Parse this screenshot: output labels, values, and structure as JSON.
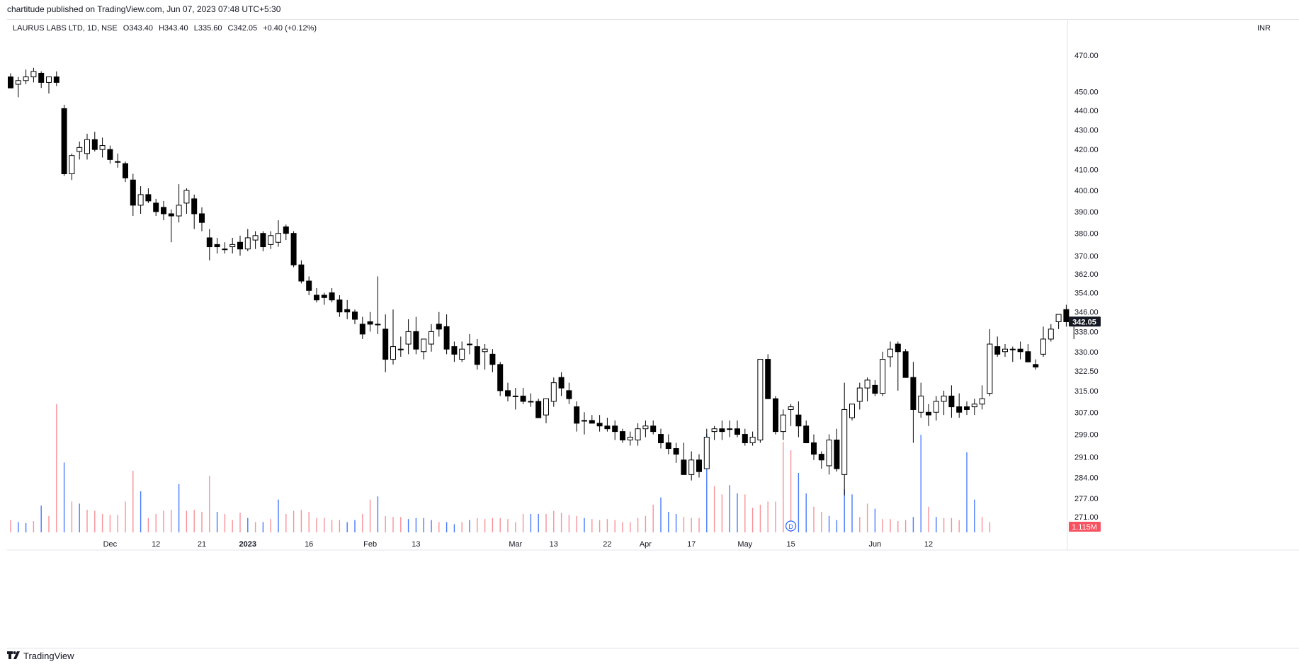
{
  "header": {
    "published": "chartitude published on TradingView.com, Jun 07, 2023 07:48 UTC+5:30"
  },
  "legend": {
    "symbol": "LAURUS LABS LTD, 1D, NSE",
    "open": "O343.40",
    "high": "H343.40",
    "low": "L335.60",
    "close": "C342.05",
    "change": "+0.40 (+0.12%)"
  },
  "currency": "INR",
  "footer": {
    "brand": "TradingView"
  },
  "colors": {
    "up_fill": "#ffffff",
    "candle": "#000000",
    "vol_up": "#2962ff",
    "vol_down": "#f23645"
  },
  "chart_data": {
    "type": "candlestick",
    "y_ticks": [
      470,
      450,
      440,
      430,
      420,
      410,
      400,
      390,
      380,
      370,
      362,
      354,
      346,
      338,
      330,
      322.5,
      315,
      307,
      299,
      291,
      284,
      277,
      271
    ],
    "y_tick_labels": [
      "470.00",
      "450.00",
      "440.00",
      "430.00",
      "420.00",
      "410.00",
      "400.00",
      "390.00",
      "380.00",
      "370.00",
      "362.00",
      "354.00",
      "346.00",
      "338.00",
      "330.00",
      "322.50",
      "315.00",
      "307.00",
      "299.00",
      "291.00",
      "284.00",
      "277.00",
      "271.00"
    ],
    "scale": "log",
    "x_labels": [
      "Dec",
      "12",
      "21",
      "2023",
      "16",
      "Feb",
      "13",
      "Mar",
      "13",
      "22",
      "Apr",
      "17",
      "May",
      "15",
      "Jun",
      "12"
    ],
    "x_label_index": [
      13,
      19,
      25,
      31,
      39,
      47,
      53,
      66,
      71,
      78,
      83,
      89,
      96,
      102,
      113,
      120
    ],
    "last_price_label": "342.05",
    "volume_label": "1.115M",
    "dividend_marker": "D",
    "dividend_index": 102,
    "candles": [
      [
        458,
        460,
        452,
        452
      ],
      [
        454,
        458,
        447,
        456
      ],
      [
        456,
        462,
        454,
        458
      ],
      [
        458,
        463,
        455,
        461
      ],
      [
        460,
        461,
        452,
        455
      ],
      [
        455,
        457,
        449,
        458
      ],
      [
        458,
        461,
        453,
        455
      ],
      [
        441,
        443,
        407,
        408
      ],
      [
        408,
        418,
        405,
        417
      ],
      [
        419,
        424,
        415,
        421
      ],
      [
        418,
        428,
        415,
        425
      ],
      [
        425,
        429,
        419,
        420
      ],
      [
        420,
        426,
        416,
        422
      ],
      [
        420,
        422,
        413,
        415
      ],
      [
        414,
        418,
        411,
        414
      ],
      [
        413,
        414,
        404,
        406
      ],
      [
        405,
        408,
        388,
        393
      ],
      [
        393,
        402,
        389,
        398
      ],
      [
        398,
        401,
        394,
        395
      ],
      [
        394,
        396,
        388,
        390
      ],
      [
        392,
        395,
        386,
        389
      ],
      [
        389,
        391,
        376,
        388
      ],
      [
        388,
        403,
        385,
        393
      ],
      [
        394,
        401,
        389,
        400
      ],
      [
        396,
        398,
        382,
        389
      ],
      [
        389,
        392,
        381,
        385
      ],
      [
        378,
        382,
        368,
        374
      ],
      [
        375,
        378,
        371,
        374
      ],
      [
        373,
        376,
        371,
        373
      ],
      [
        374,
        378,
        371,
        375
      ],
      [
        376,
        379,
        370,
        373
      ],
      [
        373,
        382,
        372,
        378
      ],
      [
        377,
        381,
        373,
        379
      ],
      [
        380,
        381,
        372,
        374
      ],
      [
        375,
        381,
        373,
        379
      ],
      [
        376,
        386,
        374,
        380
      ],
      [
        383,
        384,
        377,
        380
      ],
      [
        380,
        381,
        365,
        366
      ],
      [
        366,
        368,
        358,
        359
      ],
      [
        359,
        361,
        353,
        355
      ],
      [
        353,
        356,
        350,
        351
      ],
      [
        353,
        354,
        349,
        352
      ],
      [
        354,
        356,
        350,
        351
      ],
      [
        351,
        353,
        344,
        346
      ],
      [
        347,
        351,
        343,
        346
      ],
      [
        346,
        347,
        341,
        343
      ],
      [
        341,
        344,
        335,
        337
      ],
      [
        342,
        346,
        338,
        341
      ],
      [
        341,
        361,
        337,
        341
      ],
      [
        339,
        345,
        322,
        327
      ],
      [
        327,
        347,
        325,
        332
      ],
      [
        331,
        336,
        328,
        331
      ],
      [
        333,
        343,
        329,
        338
      ],
      [
        338,
        344,
        329,
        331
      ],
      [
        330,
        334,
        327,
        335
      ],
      [
        333,
        341,
        330,
        338
      ],
      [
        341,
        346,
        336,
        339
      ],
      [
        340,
        345,
        329,
        331
      ],
      [
        332,
        334,
        326,
        329
      ],
      [
        327,
        334,
        326,
        331
      ],
      [
        333,
        337,
        329,
        333
      ],
      [
        332,
        335,
        323,
        325
      ],
      [
        330,
        333,
        323,
        331
      ],
      [
        329,
        331,
        322,
        325
      ],
      [
        325,
        326,
        313,
        315
      ],
      [
        315,
        318,
        311,
        313
      ],
      [
        313,
        316,
        308,
        313
      ],
      [
        313,
        316,
        310,
        311
      ],
      [
        311,
        314,
        309,
        311
      ],
      [
        311,
        312,
        305,
        305
      ],
      [
        306,
        312,
        303,
        312
      ],
      [
        311,
        320,
        309,
        318
      ],
      [
        320,
        322,
        313,
        316
      ],
      [
        315,
        318,
        310,
        312
      ],
      [
        309,
        311,
        300,
        303
      ],
      [
        304,
        307,
        299,
        304
      ],
      [
        304,
        306,
        303,
        303
      ],
      [
        303,
        306,
        300,
        302
      ],
      [
        302,
        305,
        300,
        301
      ],
      [
        302,
        304,
        297,
        300
      ],
      [
        300,
        301,
        296,
        297
      ],
      [
        297,
        300,
        295,
        298
      ],
      [
        297,
        303,
        295,
        301
      ],
      [
        301,
        304,
        298,
        302
      ],
      [
        302,
        304,
        299,
        300
      ],
      [
        299,
        301,
        294,
        296
      ],
      [
        296,
        299,
        292,
        294
      ],
      [
        294,
        296,
        289,
        292
      ],
      [
        290,
        296,
        285,
        285
      ],
      [
        285,
        293,
        283,
        290
      ],
      [
        290,
        292,
        284,
        286
      ],
      [
        287,
        301,
        287,
        298
      ],
      [
        300,
        302,
        297,
        301
      ],
      [
        301,
        304,
        297,
        300
      ],
      [
        301,
        304,
        298,
        301
      ],
      [
        301,
        304,
        298,
        299
      ],
      [
        299,
        301,
        295,
        296
      ],
      [
        296,
        300,
        295,
        298
      ],
      [
        297,
        326,
        296,
        327
      ],
      [
        327,
        329,
        312,
        312
      ],
      [
        312,
        313,
        299,
        300
      ],
      [
        300,
        308,
        297,
        306
      ],
      [
        308,
        310,
        302,
        309
      ],
      [
        306,
        311,
        298,
        302
      ],
      [
        302,
        304,
        296,
        296
      ],
      [
        296,
        299,
        290,
        292
      ],
      [
        292,
        293,
        287,
        290
      ],
      [
        288,
        299,
        285,
        297
      ],
      [
        297,
        301,
        286,
        287
      ],
      [
        285,
        318,
        278,
        308
      ],
      [
        305,
        310,
        304,
        310
      ],
      [
        311,
        318,
        308,
        316
      ],
      [
        316,
        320,
        311,
        319
      ],
      [
        317,
        319,
        313,
        314
      ],
      [
        314,
        330,
        313,
        327
      ],
      [
        328,
        334,
        324,
        331
      ],
      [
        333,
        334,
        315,
        330
      ],
      [
        330,
        331,
        320,
        320
      ],
      [
        320,
        326,
        296,
        308
      ],
      [
        307,
        318,
        305,
        313
      ],
      [
        307,
        310,
        302,
        306
      ],
      [
        307,
        313,
        304,
        311
      ],
      [
        311,
        315,
        306,
        313
      ],
      [
        313,
        317,
        305,
        309
      ],
      [
        309,
        314,
        305,
        307
      ],
      [
        309,
        311,
        306,
        308
      ],
      [
        309,
        312,
        306,
        310
      ],
      [
        310,
        317,
        308,
        312
      ],
      [
        314,
        339,
        313,
        333
      ],
      [
        332,
        336,
        328,
        329
      ],
      [
        330,
        333,
        328,
        331
      ],
      [
        331,
        332,
        326,
        331
      ],
      [
        331,
        334,
        327,
        330
      ],
      [
        330,
        333,
        326,
        326
      ],
      [
        325,
        327,
        323,
        324
      ],
      [
        329,
        340,
        328,
        335
      ],
      [
        335,
        341,
        334,
        339
      ],
      [
        342,
        344,
        339,
        345
      ],
      [
        347,
        349,
        340,
        342
      ],
      [
        343,
        343,
        335,
        342
      ]
    ],
    "volumes": [
      [
        0.12,
        0
      ],
      [
        0.1,
        1
      ],
      [
        0.09,
        1
      ],
      [
        0.11,
        0
      ],
      [
        0.26,
        1
      ],
      [
        0.16,
        0
      ],
      [
        1.25,
        0
      ],
      [
        0.68,
        1
      ],
      [
        0.3,
        0
      ],
      [
        0.28,
        1
      ],
      [
        0.22,
        0
      ],
      [
        0.21,
        0
      ],
      [
        0.18,
        0
      ],
      [
        0.17,
        0
      ],
      [
        0.17,
        0
      ],
      [
        0.3,
        0
      ],
      [
        0.6,
        0
      ],
      [
        0.4,
        1
      ],
      [
        0.14,
        0
      ],
      [
        0.18,
        0
      ],
      [
        0.21,
        0
      ],
      [
        0.22,
        0
      ],
      [
        0.47,
        1
      ],
      [
        0.21,
        0
      ],
      [
        0.22,
        0
      ],
      [
        0.2,
        0
      ],
      [
        0.55,
        0
      ],
      [
        0.2,
        1
      ],
      [
        0.18,
        0
      ],
      [
        0.12,
        0
      ],
      [
        0.19,
        0
      ],
      [
        0.14,
        1
      ],
      [
        0.1,
        0
      ],
      [
        0.1,
        1
      ],
      [
        0.13,
        0
      ],
      [
        0.32,
        1
      ],
      [
        0.18,
        0
      ],
      [
        0.21,
        0
      ],
      [
        0.22,
        0
      ],
      [
        0.2,
        0
      ],
      [
        0.14,
        0
      ],
      [
        0.14,
        0
      ],
      [
        0.12,
        0
      ],
      [
        0.12,
        0
      ],
      [
        0.1,
        1
      ],
      [
        0.12,
        1
      ],
      [
        0.18,
        0
      ],
      [
        0.32,
        0
      ],
      [
        0.35,
        1
      ],
      [
        0.16,
        0
      ],
      [
        0.15,
        0
      ],
      [
        0.15,
        0
      ],
      [
        0.13,
        1
      ],
      [
        0.14,
        1
      ],
      [
        0.14,
        1
      ],
      [
        0.12,
        1
      ],
      [
        0.1,
        0
      ],
      [
        0.1,
        1
      ],
      [
        0.08,
        1
      ],
      [
        0.1,
        0
      ],
      [
        0.12,
        1
      ],
      [
        0.14,
        0
      ],
      [
        0.13,
        0
      ],
      [
        0.14,
        0
      ],
      [
        0.14,
        0
      ],
      [
        0.13,
        0
      ],
      [
        0.1,
        0
      ],
      [
        0.18,
        0
      ],
      [
        0.18,
        1
      ],
      [
        0.18,
        1
      ],
      [
        0.18,
        0
      ],
      [
        0.21,
        0
      ],
      [
        0.19,
        0
      ],
      [
        0.17,
        0
      ],
      [
        0.16,
        0
      ],
      [
        0.14,
        1
      ],
      [
        0.13,
        0
      ],
      [
        0.12,
        0
      ],
      [
        0.13,
        0
      ],
      [
        0.12,
        0
      ],
      [
        0.1,
        0
      ],
      [
        0.1,
        0
      ],
      [
        0.14,
        0
      ],
      [
        0.16,
        0
      ],
      [
        0.27,
        0
      ],
      [
        0.34,
        1
      ],
      [
        0.2,
        1
      ],
      [
        0.18,
        1
      ],
      [
        0.15,
        0
      ],
      [
        0.14,
        0
      ],
      [
        0.14,
        0
      ],
      [
        0.96,
        1
      ],
      [
        0.45,
        0
      ],
      [
        0.37,
        0
      ],
      [
        0.46,
        1
      ],
      [
        0.38,
        1
      ],
      [
        0.37,
        0
      ],
      [
        0.24,
        0
      ],
      [
        0.27,
        0
      ],
      [
        0.3,
        0
      ],
      [
        0.3,
        0
      ],
      [
        0.88,
        0
      ],
      [
        0.8,
        0
      ],
      [
        0.58,
        1
      ],
      [
        0.38,
        1
      ],
      [
        0.25,
        0
      ],
      [
        0.2,
        0
      ],
      [
        0.16,
        1
      ],
      [
        0.12,
        1
      ],
      [
        0.42,
        1
      ],
      [
        0.37,
        1
      ],
      [
        0.15,
        0
      ],
      [
        0.28,
        0
      ],
      [
        0.23,
        1
      ],
      [
        0.13,
        0
      ],
      [
        0.13,
        0
      ],
      [
        0.11,
        0
      ],
      [
        0.12,
        0
      ],
      [
        0.15,
        1
      ],
      [
        0.95,
        1
      ],
      [
        0.25,
        0
      ],
      [
        0.15,
        1
      ],
      [
        0.14,
        0
      ],
      [
        0.14,
        0
      ],
      [
        0.12,
        0
      ],
      [
        0.78,
        1
      ],
      [
        0.32,
        1
      ],
      [
        0.15,
        0
      ],
      [
        0.1,
        0
      ]
    ]
  }
}
